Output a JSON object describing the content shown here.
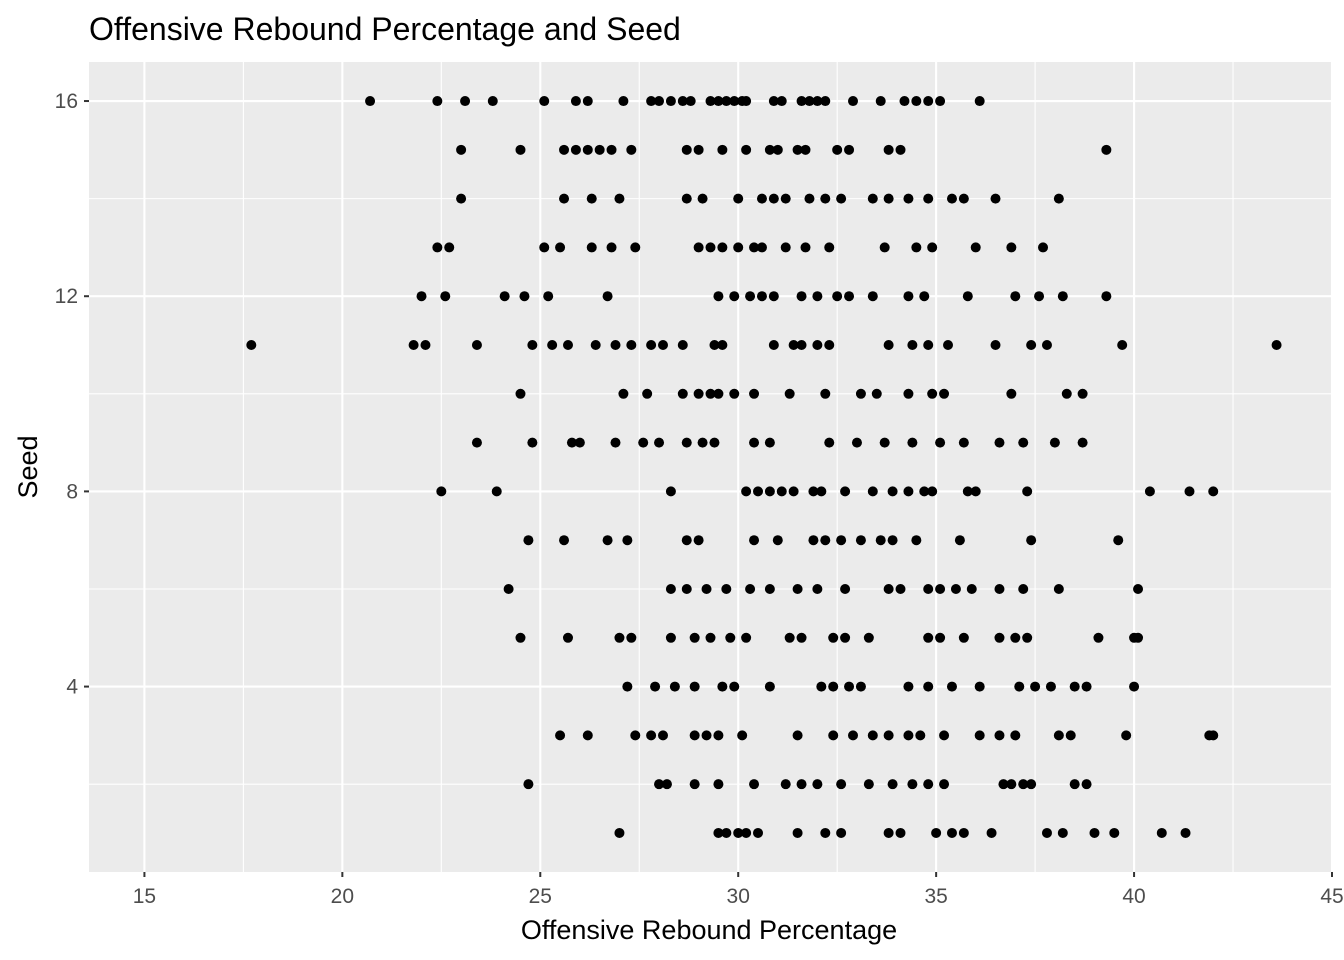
{
  "chart_data": {
    "type": "scatter",
    "title": "Offensive Rebound Percentage and Seed",
    "xlabel": "Offensive Rebound Percentage",
    "ylabel": "Seed",
    "xlim": [
      13.6,
      45.0
    ],
    "ylim": [
      0.2,
      16.8
    ],
    "x_ticks": [
      15,
      20,
      25,
      30,
      35,
      40,
      45
    ],
    "x_tick_labels": [
      "15",
      "20",
      "25",
      "30",
      "35",
      "40",
      "45"
    ],
    "y_ticks": [
      4,
      8,
      12,
      16
    ],
    "y_tick_labels": [
      "4",
      "8",
      "12",
      "16"
    ],
    "grid": true,
    "panel_background": "#ebebeb",
    "grid_color": "#ffffff",
    "point_color": "#000000",
    "points": [
      [
        20.7,
        16
      ],
      [
        22.4,
        16
      ],
      [
        23.1,
        16
      ],
      [
        23.8,
        16
      ],
      [
        25.1,
        16
      ],
      [
        25.9,
        16
      ],
      [
        26.2,
        16
      ],
      [
        27.1,
        16
      ],
      [
        27.8,
        16
      ],
      [
        28.0,
        16
      ],
      [
        28.3,
        16
      ],
      [
        28.6,
        16
      ],
      [
        28.8,
        16
      ],
      [
        29.3,
        16
      ],
      [
        29.5,
        16
      ],
      [
        29.7,
        16
      ],
      [
        29.9,
        16
      ],
      [
        30.1,
        16
      ],
      [
        30.2,
        16
      ],
      [
        30.9,
        16
      ],
      [
        31.1,
        16
      ],
      [
        31.6,
        16
      ],
      [
        31.8,
        16
      ],
      [
        32.0,
        16
      ],
      [
        32.2,
        16
      ],
      [
        32.9,
        16
      ],
      [
        33.6,
        16
      ],
      [
        34.2,
        16
      ],
      [
        34.5,
        16
      ],
      [
        34.8,
        16
      ],
      [
        35.1,
        16
      ],
      [
        36.1,
        16
      ],
      [
        23.0,
        15
      ],
      [
        24.5,
        15
      ],
      [
        25.6,
        15
      ],
      [
        25.9,
        15
      ],
      [
        26.2,
        15
      ],
      [
        26.5,
        15
      ],
      [
        26.8,
        15
      ],
      [
        27.3,
        15
      ],
      [
        28.7,
        15
      ],
      [
        29.0,
        15
      ],
      [
        29.6,
        15
      ],
      [
        30.2,
        15
      ],
      [
        30.8,
        15
      ],
      [
        31.0,
        15
      ],
      [
        31.5,
        15
      ],
      [
        31.7,
        15
      ],
      [
        32.5,
        15
      ],
      [
        32.8,
        15
      ],
      [
        33.8,
        15
      ],
      [
        34.1,
        15
      ],
      [
        39.3,
        15
      ],
      [
        23.0,
        14
      ],
      [
        25.6,
        14
      ],
      [
        26.3,
        14
      ],
      [
        27.0,
        14
      ],
      [
        28.7,
        14
      ],
      [
        29.1,
        14
      ],
      [
        30.0,
        14
      ],
      [
        30.6,
        14
      ],
      [
        30.9,
        14
      ],
      [
        31.2,
        14
      ],
      [
        31.8,
        14
      ],
      [
        32.2,
        14
      ],
      [
        32.6,
        14
      ],
      [
        33.4,
        14
      ],
      [
        33.8,
        14
      ],
      [
        34.3,
        14
      ],
      [
        34.8,
        14
      ],
      [
        35.4,
        14
      ],
      [
        35.7,
        14
      ],
      [
        36.5,
        14
      ],
      [
        38.1,
        14
      ],
      [
        22.4,
        13
      ],
      [
        22.7,
        13
      ],
      [
        25.1,
        13
      ],
      [
        25.5,
        13
      ],
      [
        26.3,
        13
      ],
      [
        26.8,
        13
      ],
      [
        27.4,
        13
      ],
      [
        29.0,
        13
      ],
      [
        29.3,
        13
      ],
      [
        29.6,
        13
      ],
      [
        30.0,
        13
      ],
      [
        30.4,
        13
      ],
      [
        30.6,
        13
      ],
      [
        31.2,
        13
      ],
      [
        31.7,
        13
      ],
      [
        32.3,
        13
      ],
      [
        33.7,
        13
      ],
      [
        34.5,
        13
      ],
      [
        34.9,
        13
      ],
      [
        36.0,
        13
      ],
      [
        36.9,
        13
      ],
      [
        37.7,
        13
      ],
      [
        22.0,
        12
      ],
      [
        22.6,
        12
      ],
      [
        24.1,
        12
      ],
      [
        24.6,
        12
      ],
      [
        25.2,
        12
      ],
      [
        26.7,
        12
      ],
      [
        29.5,
        12
      ],
      [
        29.9,
        12
      ],
      [
        30.3,
        12
      ],
      [
        30.6,
        12
      ],
      [
        30.9,
        12
      ],
      [
        31.6,
        12
      ],
      [
        32.0,
        12
      ],
      [
        32.5,
        12
      ],
      [
        32.8,
        12
      ],
      [
        33.4,
        12
      ],
      [
        34.3,
        12
      ],
      [
        34.7,
        12
      ],
      [
        35.8,
        12
      ],
      [
        37.0,
        12
      ],
      [
        37.6,
        12
      ],
      [
        38.2,
        12
      ],
      [
        39.3,
        12
      ],
      [
        17.7,
        11
      ],
      [
        21.8,
        11
      ],
      [
        22.1,
        11
      ],
      [
        23.4,
        11
      ],
      [
        24.8,
        11
      ],
      [
        25.3,
        11
      ],
      [
        25.7,
        11
      ],
      [
        26.4,
        11
      ],
      [
        26.9,
        11
      ],
      [
        27.3,
        11
      ],
      [
        27.8,
        11
      ],
      [
        28.1,
        11
      ],
      [
        28.6,
        11
      ],
      [
        29.4,
        11
      ],
      [
        29.6,
        11
      ],
      [
        30.9,
        11
      ],
      [
        31.4,
        11
      ],
      [
        31.6,
        11
      ],
      [
        32.0,
        11
      ],
      [
        32.3,
        11
      ],
      [
        33.8,
        11
      ],
      [
        34.4,
        11
      ],
      [
        34.8,
        11
      ],
      [
        35.3,
        11
      ],
      [
        36.5,
        11
      ],
      [
        37.4,
        11
      ],
      [
        37.8,
        11
      ],
      [
        39.7,
        11
      ],
      [
        43.6,
        11
      ],
      [
        24.5,
        10
      ],
      [
        27.1,
        10
      ],
      [
        27.7,
        10
      ],
      [
        28.6,
        10
      ],
      [
        29.0,
        10
      ],
      [
        29.3,
        10
      ],
      [
        29.5,
        10
      ],
      [
        29.9,
        10
      ],
      [
        30.4,
        10
      ],
      [
        31.3,
        10
      ],
      [
        32.2,
        10
      ],
      [
        33.1,
        10
      ],
      [
        33.5,
        10
      ],
      [
        34.3,
        10
      ],
      [
        34.9,
        10
      ],
      [
        35.2,
        10
      ],
      [
        36.9,
        10
      ],
      [
        38.3,
        10
      ],
      [
        38.7,
        10
      ],
      [
        23.4,
        9
      ],
      [
        24.8,
        9
      ],
      [
        25.8,
        9
      ],
      [
        26.0,
        9
      ],
      [
        26.9,
        9
      ],
      [
        27.6,
        9
      ],
      [
        28.0,
        9
      ],
      [
        28.7,
        9
      ],
      [
        29.1,
        9
      ],
      [
        29.4,
        9
      ],
      [
        30.4,
        9
      ],
      [
        30.8,
        9
      ],
      [
        32.3,
        9
      ],
      [
        33.0,
        9
      ],
      [
        33.7,
        9
      ],
      [
        34.4,
        9
      ],
      [
        35.1,
        9
      ],
      [
        35.7,
        9
      ],
      [
        36.6,
        9
      ],
      [
        37.2,
        9
      ],
      [
        38.0,
        9
      ],
      [
        38.7,
        9
      ],
      [
        22.5,
        8
      ],
      [
        23.9,
        8
      ],
      [
        28.3,
        8
      ],
      [
        30.2,
        8
      ],
      [
        30.5,
        8
      ],
      [
        30.8,
        8
      ],
      [
        31.1,
        8
      ],
      [
        31.4,
        8
      ],
      [
        31.9,
        8
      ],
      [
        32.1,
        8
      ],
      [
        32.7,
        8
      ],
      [
        33.4,
        8
      ],
      [
        33.9,
        8
      ],
      [
        34.3,
        8
      ],
      [
        34.7,
        8
      ],
      [
        34.9,
        8
      ],
      [
        35.8,
        8
      ],
      [
        36.0,
        8
      ],
      [
        37.3,
        8
      ],
      [
        40.4,
        8
      ],
      [
        41.4,
        8
      ],
      [
        42.0,
        8
      ],
      [
        24.7,
        7
      ],
      [
        25.6,
        7
      ],
      [
        26.7,
        7
      ],
      [
        27.2,
        7
      ],
      [
        28.7,
        7
      ],
      [
        29.0,
        7
      ],
      [
        30.4,
        7
      ],
      [
        31.0,
        7
      ],
      [
        31.9,
        7
      ],
      [
        32.2,
        7
      ],
      [
        32.6,
        7
      ],
      [
        33.1,
        7
      ],
      [
        33.6,
        7
      ],
      [
        33.9,
        7
      ],
      [
        34.5,
        7
      ],
      [
        35.6,
        7
      ],
      [
        37.4,
        7
      ],
      [
        39.6,
        7
      ],
      [
        24.2,
        6
      ],
      [
        28.3,
        6
      ],
      [
        28.7,
        6
      ],
      [
        29.2,
        6
      ],
      [
        29.7,
        6
      ],
      [
        30.3,
        6
      ],
      [
        30.8,
        6
      ],
      [
        31.5,
        6
      ],
      [
        32.0,
        6
      ],
      [
        32.7,
        6
      ],
      [
        33.8,
        6
      ],
      [
        34.1,
        6
      ],
      [
        34.8,
        6
      ],
      [
        35.1,
        6
      ],
      [
        35.5,
        6
      ],
      [
        35.9,
        6
      ],
      [
        36.6,
        6
      ],
      [
        37.2,
        6
      ],
      [
        38.1,
        6
      ],
      [
        40.1,
        6
      ],
      [
        24.5,
        5
      ],
      [
        25.7,
        5
      ],
      [
        27.0,
        5
      ],
      [
        27.3,
        5
      ],
      [
        28.3,
        5
      ],
      [
        28.9,
        5
      ],
      [
        29.3,
        5
      ],
      [
        29.8,
        5
      ],
      [
        30.2,
        5
      ],
      [
        31.3,
        5
      ],
      [
        31.6,
        5
      ],
      [
        32.4,
        5
      ],
      [
        32.7,
        5
      ],
      [
        33.3,
        5
      ],
      [
        34.8,
        5
      ],
      [
        35.1,
        5
      ],
      [
        35.7,
        5
      ],
      [
        36.6,
        5
      ],
      [
        37.0,
        5
      ],
      [
        37.3,
        5
      ],
      [
        39.1,
        5
      ],
      [
        40.0,
        5
      ],
      [
        40.1,
        5
      ],
      [
        27.2,
        4
      ],
      [
        27.9,
        4
      ],
      [
        28.4,
        4
      ],
      [
        28.9,
        4
      ],
      [
        29.6,
        4
      ],
      [
        29.9,
        4
      ],
      [
        30.8,
        4
      ],
      [
        32.1,
        4
      ],
      [
        32.4,
        4
      ],
      [
        32.8,
        4
      ],
      [
        33.1,
        4
      ],
      [
        34.3,
        4
      ],
      [
        34.8,
        4
      ],
      [
        35.4,
        4
      ],
      [
        36.1,
        4
      ],
      [
        37.1,
        4
      ],
      [
        37.5,
        4
      ],
      [
        37.9,
        4
      ],
      [
        38.5,
        4
      ],
      [
        38.8,
        4
      ],
      [
        40.0,
        4
      ],
      [
        25.5,
        3
      ],
      [
        26.2,
        3
      ],
      [
        27.4,
        3
      ],
      [
        27.8,
        3
      ],
      [
        28.1,
        3
      ],
      [
        28.9,
        3
      ],
      [
        29.2,
        3
      ],
      [
        29.5,
        3
      ],
      [
        30.1,
        3
      ],
      [
        31.5,
        3
      ],
      [
        32.4,
        3
      ],
      [
        32.9,
        3
      ],
      [
        33.4,
        3
      ],
      [
        33.8,
        3
      ],
      [
        34.3,
        3
      ],
      [
        34.6,
        3
      ],
      [
        35.2,
        3
      ],
      [
        36.1,
        3
      ],
      [
        36.6,
        3
      ],
      [
        37.0,
        3
      ],
      [
        38.1,
        3
      ],
      [
        38.4,
        3
      ],
      [
        39.8,
        3
      ],
      [
        41.9,
        3
      ],
      [
        42.0,
        3
      ],
      [
        24.7,
        2
      ],
      [
        28.0,
        2
      ],
      [
        28.2,
        2
      ],
      [
        28.9,
        2
      ],
      [
        29.5,
        2
      ],
      [
        30.4,
        2
      ],
      [
        31.2,
        2
      ],
      [
        31.6,
        2
      ],
      [
        32.0,
        2
      ],
      [
        32.6,
        2
      ],
      [
        33.3,
        2
      ],
      [
        33.9,
        2
      ],
      [
        34.4,
        2
      ],
      [
        34.8,
        2
      ],
      [
        35.2,
        2
      ],
      [
        36.7,
        2
      ],
      [
        36.9,
        2
      ],
      [
        37.2,
        2
      ],
      [
        37.4,
        2
      ],
      [
        38.5,
        2
      ],
      [
        38.8,
        2
      ],
      [
        27.0,
        1
      ],
      [
        29.5,
        1
      ],
      [
        29.7,
        1
      ],
      [
        30.0,
        1
      ],
      [
        30.2,
        1
      ],
      [
        30.5,
        1
      ],
      [
        31.5,
        1
      ],
      [
        32.2,
        1
      ],
      [
        32.6,
        1
      ],
      [
        33.8,
        1
      ],
      [
        34.1,
        1
      ],
      [
        35.0,
        1
      ],
      [
        35.4,
        1
      ],
      [
        35.7,
        1
      ],
      [
        36.4,
        1
      ],
      [
        37.8,
        1
      ],
      [
        38.2,
        1
      ],
      [
        39.0,
        1
      ],
      [
        39.5,
        1
      ],
      [
        40.7,
        1
      ],
      [
        41.3,
        1
      ]
    ]
  }
}
